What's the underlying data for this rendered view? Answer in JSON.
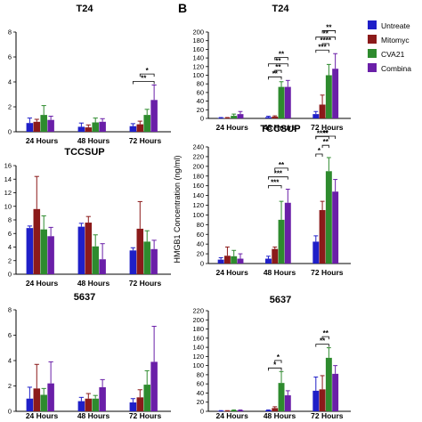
{
  "panel_b_label": "B",
  "y_axis_label": "HMGB1 Concentration (ng/ml)",
  "legend": [
    {
      "label": "Untreate",
      "color": "#1f1fc8"
    },
    {
      "label": "Mitomyc",
      "color": "#8b1a1a"
    },
    {
      "label": "CVA21",
      "color": "#2e8b2e"
    },
    {
      "label": "Combina",
      "color": "#6a1fa8"
    }
  ],
  "chart_data": [
    {
      "id": "A-T24",
      "type": "bar",
      "title": "T24",
      "categories": [
        "24 Hours",
        "48 Hours",
        "72 Hours"
      ],
      "ylim": [
        0,
        8
      ],
      "yticks": [
        0,
        2,
        4,
        6,
        8
      ],
      "series": [
        {
          "values": [
            0.7,
            0.4,
            0.45
          ],
          "errors": [
            0.4,
            0.3,
            0.2
          ]
        },
        {
          "values": [
            0.8,
            0.35,
            0.6
          ],
          "errors": [
            0.2,
            0.2,
            0.25
          ]
        },
        {
          "values": [
            1.35,
            0.75,
            1.35
          ],
          "errors": [
            0.75,
            0.35,
            0.45
          ]
        },
        {
          "values": [
            0.95,
            0.8,
            2.55
          ],
          "errors": [
            0.3,
            0.25,
            1.2
          ]
        }
      ],
      "significance": [
        {
          "cat": 2,
          "from": 0,
          "to": 3,
          "label": "**"
        },
        {
          "cat": 2,
          "from": 1,
          "to": 3,
          "label": "*"
        }
      ]
    },
    {
      "id": "A-TCCSUP",
      "type": "bar",
      "title": "TCCSUP",
      "categories": [
        "24 Hours",
        "48 Hours",
        "72 Hours"
      ],
      "ylim": [
        0,
        16
      ],
      "yticks": [
        0,
        2,
        4,
        6,
        8,
        10,
        12,
        14,
        16
      ],
      "series": [
        {
          "values": [
            6.8,
            7.0,
            3.5
          ],
          "errors": [
            0.3,
            0.5,
            0.4
          ]
        },
        {
          "values": [
            9.6,
            7.6,
            6.7
          ],
          "errors": [
            4.8,
            0.9,
            4.0
          ]
        },
        {
          "values": [
            6.6,
            4.1,
            4.8
          ],
          "errors": [
            2.0,
            1.7,
            1.6
          ]
        },
        {
          "values": [
            5.6,
            2.2,
            3.7
          ],
          "errors": [
            1.3,
            2.3,
            1.3
          ]
        }
      ],
      "significance": []
    },
    {
      "id": "A-5637",
      "type": "bar",
      "title": "5637",
      "categories": [
        "24 Hours",
        "48 Hours",
        "72 Hours"
      ],
      "ylim": [
        0,
        8
      ],
      "yticks": [
        0,
        2,
        4,
        6,
        8
      ],
      "series": [
        {
          "values": [
            1.0,
            0.8,
            0.7
          ],
          "errors": [
            0.9,
            0.3,
            0.3
          ]
        },
        {
          "values": [
            1.8,
            1.0,
            1.1
          ],
          "errors": [
            1.9,
            0.4,
            0.6
          ]
        },
        {
          "values": [
            1.3,
            1.0,
            2.1
          ],
          "errors": [
            0.5,
            0.25,
            1.1
          ]
        },
        {
          "values": [
            2.2,
            1.9,
            3.9
          ],
          "errors": [
            1.7,
            0.6,
            2.8
          ]
        }
      ],
      "significance": []
    },
    {
      "id": "B-T24",
      "type": "bar",
      "title": "T24",
      "categories": [
        "24 Hours",
        "48 Hours",
        "72 Hours"
      ],
      "ylim": [
        0,
        200
      ],
      "yticks": [
        0,
        20,
        40,
        60,
        80,
        100,
        120,
        140,
        160,
        180,
        200
      ],
      "series": [
        {
          "values": [
            1,
            3,
            10
          ],
          "errors": [
            1,
            2,
            6
          ]
        },
        {
          "values": [
            1,
            4,
            32
          ],
          "errors": [
            1,
            2,
            22
          ]
        },
        {
          "values": [
            6,
            73,
            100
          ],
          "errors": [
            4,
            12,
            25
          ]
        },
        {
          "values": [
            10,
            73,
            115
          ],
          "errors": [
            6,
            15,
            35
          ]
        }
      ],
      "significance": [
        {
          "cat": 1,
          "from": 0,
          "to": 2,
          "label": "**"
        },
        {
          "cat": 1,
          "from": 1,
          "to": 2,
          "label": "**"
        },
        {
          "cat": 1,
          "from": 0,
          "to": 3,
          "label": "**"
        },
        {
          "cat": 1,
          "from": 1,
          "to": 3,
          "label": "**"
        },
        {
          "cat": 2,
          "from": 0,
          "to": 2,
          "label": "***"
        },
        {
          "cat": 2,
          "from": 1,
          "to": 2,
          "label": "****"
        },
        {
          "cat": 2,
          "from": 0,
          "to": 3,
          "label": "**"
        },
        {
          "cat": 2,
          "from": 1,
          "to": 3,
          "label": "**"
        }
      ]
    },
    {
      "id": "B-TCCSUP",
      "type": "bar",
      "title": "TCCSUP",
      "categories": [
        "24 Hours",
        "48 Hours",
        "72 Hours"
      ],
      "ylim": [
        0,
        240
      ],
      "yticks": [
        0,
        20,
        40,
        60,
        80,
        100,
        120,
        140,
        160,
        180,
        200,
        220,
        240
      ],
      "series": [
        {
          "values": [
            8,
            10,
            45
          ],
          "errors": [
            4,
            5,
            12
          ]
        },
        {
          "values": [
            16,
            30,
            110
          ],
          "errors": [
            18,
            4,
            18
          ]
        },
        {
          "values": [
            15,
            90,
            190
          ],
          "errors": [
            12,
            38,
            28
          ]
        },
        {
          "values": [
            10,
            125,
            148
          ],
          "errors": [
            10,
            28,
            25
          ]
        }
      ],
      "significance": [
        {
          "cat": 1,
          "from": 0,
          "to": 2,
          "label": "***"
        },
        {
          "cat": 1,
          "from": 0,
          "to": 3,
          "label": "***"
        },
        {
          "cat": 1,
          "from": 1,
          "to": 3,
          "label": "**"
        },
        {
          "cat": 2,
          "from": 0,
          "to": 1,
          "label": "*"
        },
        {
          "cat": 2,
          "from": 1,
          "to": 2,
          "label": "**"
        },
        {
          "cat": 2,
          "from": 0,
          "to": 2,
          "label": "****"
        },
        {
          "cat": 2,
          "from": 0,
          "to": 3,
          "label": "**"
        }
      ]
    },
    {
      "id": "B-5637",
      "type": "bar",
      "title": "5637",
      "categories": [
        "24 Hours",
        "48 Hours",
        "72 Hours"
      ],
      "ylim": [
        0,
        220
      ],
      "yticks": [
        0,
        20,
        40,
        60,
        80,
        100,
        120,
        140,
        160,
        180,
        200,
        220
      ],
      "series": [
        {
          "values": [
            1,
            2,
            45
          ],
          "errors": [
            0.5,
            1,
            30
          ]
        },
        {
          "values": [
            1,
            7,
            48
          ],
          "errors": [
            0.5,
            3,
            30
          ]
        },
        {
          "values": [
            2,
            62,
            117
          ],
          "errors": [
            1,
            25,
            22
          ]
        },
        {
          "values": [
            2,
            35,
            82
          ],
          "errors": [
            1,
            10,
            18
          ]
        }
      ],
      "significance": [
        {
          "cat": 1,
          "from": 0,
          "to": 2,
          "label": "*"
        },
        {
          "cat": 1,
          "from": 1,
          "to": 2,
          "label": "*"
        },
        {
          "cat": 2,
          "from": 0,
          "to": 2,
          "label": "**"
        },
        {
          "cat": 2,
          "from": 1,
          "to": 2,
          "label": "**"
        }
      ]
    }
  ]
}
